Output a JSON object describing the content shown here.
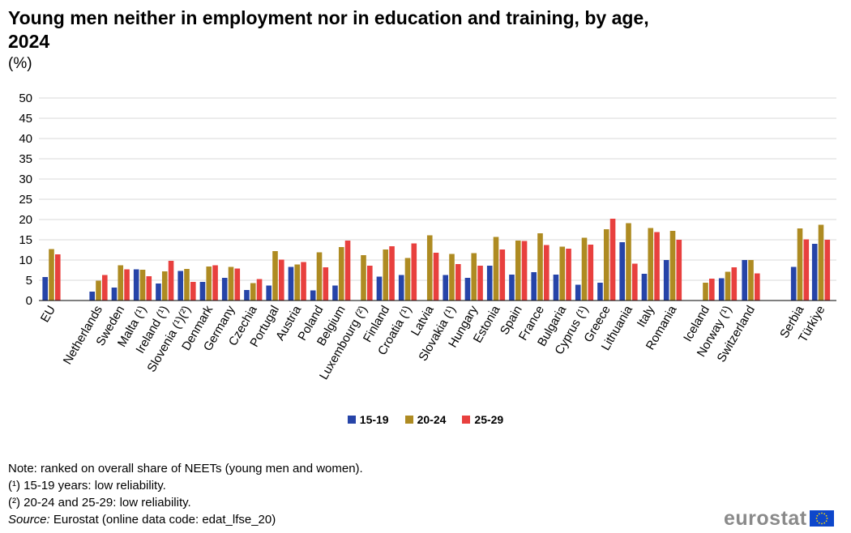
{
  "chart_data": {
    "type": "bar",
    "title": "Young men neither in employment nor in education and training, by age, 2024",
    "ylabel": "(%)",
    "ylim": [
      0,
      50
    ],
    "yticks": [
      0,
      5,
      10,
      15,
      20,
      25,
      30,
      35,
      40,
      45,
      50
    ],
    "grid": true,
    "legend_position": "bottom-center",
    "categories": [
      "EU",
      "Netherlands",
      "Sweden",
      "Malta (¹)",
      "Ireland (¹)",
      "Slovenia (¹)(²)",
      "Denmark",
      "Germany",
      "Czechia",
      "Portugal",
      "Austria",
      "Poland",
      "Belgium",
      "Luxembourg (²)",
      "Finland",
      "Croatia (¹)",
      "Latvia",
      "Slovakia (¹)",
      "Hungary",
      "Estonia",
      "Spain",
      "France",
      "Bulgaria",
      "Cyprus (¹)",
      "Greece",
      "Lithuania",
      "Italy",
      "Romania",
      "Iceland",
      "Norway (¹)",
      "Switzerland",
      "Serbia",
      "Türkiye"
    ],
    "series": [
      {
        "name": "15-19",
        "color": "#2644a8",
        "values": [
          5.8,
          2.2,
          3.2,
          7.7,
          4.2,
          7.3,
          4.6,
          5.6,
          2.6,
          3.7,
          8.3,
          2.5,
          3.7,
          null,
          5.9,
          6.3,
          null,
          6.3,
          5.6,
          8.6,
          6.4,
          7.0,
          6.4,
          3.9,
          4.4,
          14.4,
          6.6,
          10.0,
          null,
          5.5,
          10.0,
          8.3,
          14.0
        ]
      },
      {
        "name": "20-24",
        "color": "#ae8b22",
        "values": [
          12.7,
          4.9,
          8.7,
          7.6,
          7.2,
          7.8,
          8.4,
          8.3,
          4.3,
          12.2,
          8.9,
          11.9,
          13.2,
          11.2,
          12.6,
          10.5,
          16.1,
          11.5,
          11.7,
          15.7,
          14.8,
          16.6,
          13.3,
          15.5,
          17.6,
          19.1,
          17.9,
          17.2,
          4.4,
          7.1,
          10.0,
          17.8,
          18.7
        ]
      },
      {
        "name": "25-29",
        "color": "#e8403e",
        "values": [
          11.4,
          6.3,
          7.7,
          6.0,
          9.8,
          4.6,
          8.7,
          7.9,
          5.3,
          10.1,
          9.5,
          8.2,
          14.8,
          8.6,
          13.4,
          14.1,
          11.8,
          9.0,
          8.6,
          12.6,
          14.7,
          13.7,
          12.8,
          13.8,
          20.2,
          9.1,
          16.9,
          15.0,
          5.4,
          8.2,
          6.7,
          15.1,
          15.0
        ]
      }
    ]
  },
  "header": {
    "title": "Young men neither in employment nor in education and training, by age, 2024",
    "unit": "(%)"
  },
  "notes": {
    "line1": "Note: ranked on overall share of NEETs (young men and women).",
    "line2": "(¹) 15-19 years: low reliability.",
    "line3": "(²) 20-24 and 25-29: low reliability.",
    "source_label": "Source:",
    "source_text": " Eurostat (online data code: edat_lfse_20)"
  },
  "logo": {
    "text": "eurostat",
    "flag_icon": "eu-flag-icon",
    "flag_color": "#0e47cb"
  }
}
